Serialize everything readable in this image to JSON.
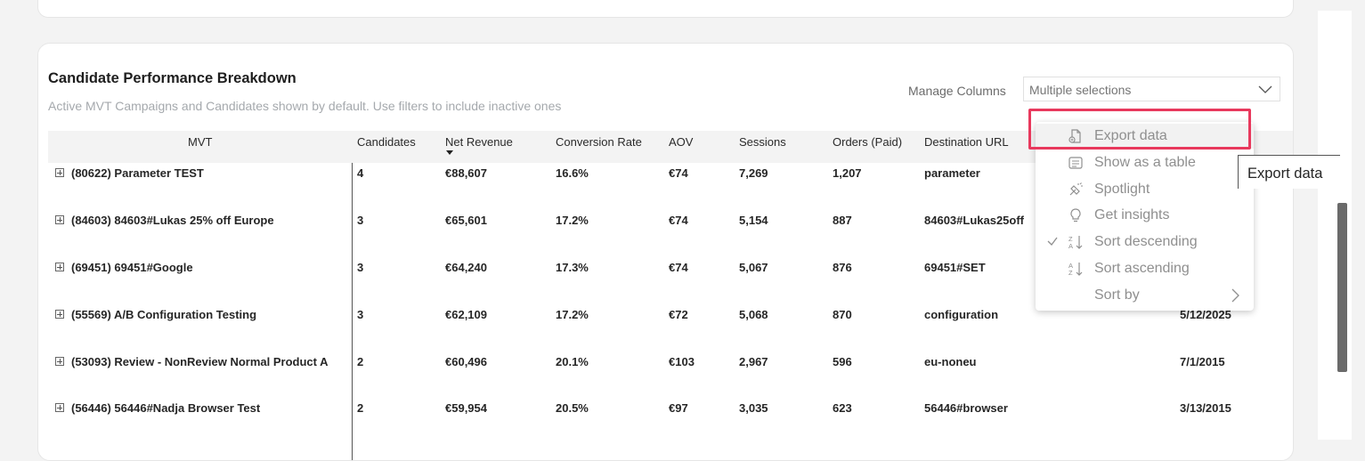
{
  "card": {
    "title": "Candidate Performance Breakdown",
    "subtitle": "Active MVT Campaigns and Candidates shown by default. Use filters to include inactive ones",
    "manage_columns_label": "Manage Columns",
    "manage_columns_value": "Multiple selections"
  },
  "table": {
    "headers": [
      "MVT",
      "Candidates",
      "Net Revenue",
      "Conversion Rate",
      "AOV",
      "Sessions",
      "Orders (Paid)",
      "Destination URL"
    ],
    "sorted_column": "Net Revenue",
    "rows": [
      {
        "mvt": "(80622) Parameter TEST",
        "candidates": "4",
        "net_revenue": "€88,607",
        "conversion_rate": "16.6%",
        "aov": "€74",
        "sessions": "7,269",
        "orders": "1,207",
        "destination": "parameter",
        "date": ""
      },
      {
        "mvt": "(84603) 84603#Lukas 25% off Europe",
        "candidates": "3",
        "net_revenue": "€65,601",
        "conversion_rate": "17.2%",
        "aov": "€74",
        "sessions": "5,154",
        "orders": "887",
        "destination": "84603#Lukas25off",
        "date": ""
      },
      {
        "mvt": "(69451) 69451#Google",
        "candidates": "3",
        "net_revenue": "€64,240",
        "conversion_rate": "17.3%",
        "aov": "€74",
        "sessions": "5,067",
        "orders": "876",
        "destination": "69451#SET",
        "date": ""
      },
      {
        "mvt": "(55569) A/B Configuration Testing",
        "candidates": "3",
        "net_revenue": "€62,109",
        "conversion_rate": "17.2%",
        "aov": "€72",
        "sessions": "5,068",
        "orders": "870",
        "destination": "configuration",
        "date": "5/12/2025"
      },
      {
        "mvt": "(53093) Review - NonReview Normal Product A",
        "candidates": "2",
        "net_revenue": "€60,496",
        "conversion_rate": "20.1%",
        "aov": "€103",
        "sessions": "2,967",
        "orders": "596",
        "destination": "eu-noneu",
        "date": "7/1/2015"
      },
      {
        "mvt": "(56446) 56446#Nadja Browser Test",
        "candidates": "2",
        "net_revenue": "€59,954",
        "conversion_rate": "20.5%",
        "aov": "€97",
        "sessions": "3,035",
        "orders": "623",
        "destination": "56446#browser",
        "date": "3/13/2015"
      }
    ]
  },
  "context_menu": {
    "items": [
      {
        "label": "Export data",
        "icon": "export-icon",
        "checked": false,
        "has_submenu": false
      },
      {
        "label": "Show as a table",
        "icon": "table-icon",
        "checked": false,
        "has_submenu": false
      },
      {
        "label": "Spotlight",
        "icon": "spotlight-icon",
        "checked": false,
        "has_submenu": false
      },
      {
        "label": "Get insights",
        "icon": "lightbulb-icon",
        "checked": false,
        "has_submenu": false
      },
      {
        "label": "Sort descending",
        "icon": "sort-descending-icon",
        "checked": true,
        "has_submenu": false
      },
      {
        "label": "Sort ascending",
        "icon": "sort-ascending-icon",
        "checked": false,
        "has_submenu": false
      },
      {
        "label": "Sort by",
        "icon": "",
        "checked": false,
        "has_submenu": true
      }
    ]
  },
  "tooltip": {
    "text": "Export data"
  },
  "colors": {
    "highlight": "#e8395d",
    "menu_text": "#8f8f8f",
    "header_bg": "#f3f3f3"
  }
}
